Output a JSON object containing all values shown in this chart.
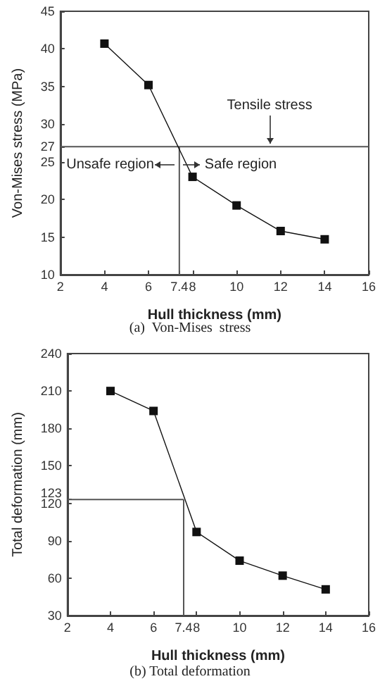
{
  "chart_data": [
    {
      "type": "line",
      "title": "(a)  Von-Mises  stress",
      "xlabel": "Hull thickness (mm)",
      "ylabel": "Von-Mises stress (MPa)",
      "x": [
        4,
        6,
        8,
        10,
        12,
        14
      ],
      "series": [
        {
          "color": "#111111",
          "values": [
            40.7,
            35.2,
            23.0,
            19.2,
            15.8,
            14.7
          ]
        }
      ],
      "xlim": [
        2,
        16
      ],
      "xticks": [
        2,
        4,
        6,
        {
          "value": 7.4,
          "label": "7.4"
        },
        8,
        10,
        12,
        14,
        16
      ],
      "ylim": [
        10,
        45
      ],
      "yticks": [
        10,
        15,
        20,
        25,
        27,
        30,
        35,
        40,
        45
      ],
      "ref_lines": [
        {
          "axis": "y",
          "value": 27,
          "label": "Tensile stress",
          "color": "#555555"
        },
        {
          "axis": "x",
          "value": 7.4,
          "color": "#555555"
        }
      ],
      "annotations": [
        "Unsafe region",
        "Safe region"
      ],
      "marker": "square",
      "grid": false
    },
    {
      "type": "line",
      "title": "(b) Total deformation",
      "xlabel": "Hull thickness (mm)",
      "ylabel": "Total deformation (mm)",
      "x": [
        4,
        6,
        8,
        10,
        12,
        14
      ],
      "series": [
        {
          "color": "#111111",
          "values": [
            210,
            194,
            97,
            74,
            62,
            51
          ]
        }
      ],
      "xlim": [
        2,
        16
      ],
      "xticks": [
        2,
        4,
        6,
        {
          "value": 7.4,
          "label": "7.4"
        },
        8,
        10,
        12,
        14,
        16
      ],
      "ylim": [
        30,
        240
      ],
      "yticks": [
        30,
        60,
        90,
        120,
        123,
        150,
        180,
        210,
        240
      ],
      "ref_lines": [
        {
          "axis": "y",
          "value": 123,
          "color": "#555555"
        },
        {
          "axis": "x",
          "value": 7.4,
          "color": "#555555"
        }
      ],
      "marker": "square",
      "grid": false
    }
  ]
}
